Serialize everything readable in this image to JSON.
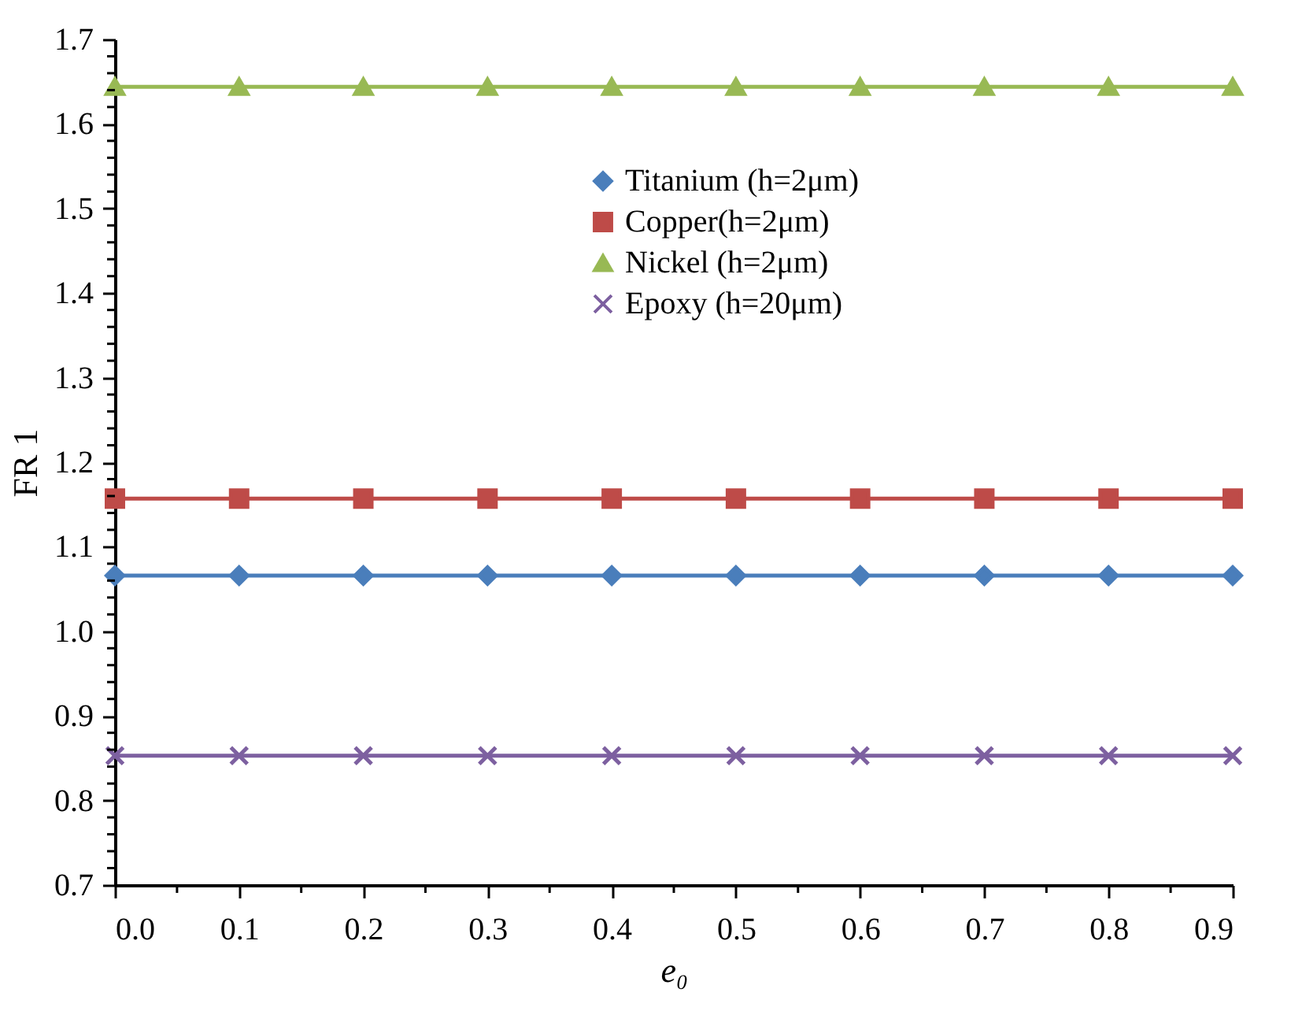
{
  "chart_data": {
    "type": "line",
    "xlabel": "e₀",
    "ylabel": "FR 1",
    "x": [
      0.0,
      0.1,
      0.2,
      0.3,
      0.4,
      0.5,
      0.6,
      0.7,
      0.8,
      0.9
    ],
    "series": [
      {
        "name": "Titanium (h=2μm)",
        "color": "#4a7ebb",
        "marker": "diamond",
        "values": [
          1.066,
          1.066,
          1.066,
          1.066,
          1.066,
          1.066,
          1.066,
          1.066,
          1.066,
          1.066
        ]
      },
      {
        "name": "Copper(h=2μm)",
        "color": "#be4b48",
        "marker": "square",
        "values": [
          1.157,
          1.157,
          1.157,
          1.157,
          1.157,
          1.157,
          1.157,
          1.157,
          1.157,
          1.157
        ]
      },
      {
        "name": "Nickel (h=2μm)",
        "color": "#98b954",
        "marker": "triangle",
        "values": [
          1.644,
          1.644,
          1.644,
          1.644,
          1.644,
          1.644,
          1.644,
          1.644,
          1.644,
          1.644
        ]
      },
      {
        "name": "Epoxy (h=20μm)",
        "color": "#7d60a0",
        "marker": "cross",
        "values": [
          0.853,
          0.853,
          0.853,
          0.853,
          0.853,
          0.853,
          0.853,
          0.853,
          0.853,
          0.853
        ]
      }
    ],
    "xlim": [
      0,
      0.9
    ],
    "xticks": [
      {
        "value": 0,
        "label": "0.0"
      },
      {
        "value": 0.05,
        "label": null
      },
      0.1,
      {
        "value": 0.15,
        "label": null
      },
      0.2,
      {
        "value": 0.25,
        "label": null
      },
      0.3,
      {
        "value": 0.35,
        "label": null
      },
      0.4,
      {
        "value": 0.45,
        "label": null
      },
      0.5,
      {
        "value": 0.55,
        "label": null
      },
      0.6,
      {
        "value": 0.65,
        "label": null
      },
      0.7,
      {
        "value": 0.75,
        "label": null
      },
      0.8,
      {
        "value": 0.85,
        "label": null
      },
      0.9
    ],
    "ylim": [
      0.7,
      1.7
    ],
    "yticks": [
      0.7,
      {
        "value": 0.72,
        "label": null
      },
      {
        "value": 0.74,
        "label": null
      },
      {
        "value": 0.76,
        "label": null
      },
      {
        "value": 0.78,
        "label": null
      },
      0.8,
      {
        "value": 0.82,
        "label": null
      },
      {
        "value": 0.84,
        "label": null
      },
      {
        "value": 0.86,
        "label": null
      },
      {
        "value": 0.88,
        "label": null
      },
      0.9,
      {
        "value": 0.92,
        "label": null
      },
      {
        "value": 0.94,
        "label": null
      },
      {
        "value": 0.96,
        "label": null
      },
      {
        "value": 0.98,
        "label": null
      },
      {
        "value": 1.0,
        "label": "1.0"
      },
      {
        "value": 1.02,
        "label": null
      },
      {
        "value": 1.04,
        "label": null
      },
      {
        "value": 1.06,
        "label": null
      },
      {
        "value": 1.08,
        "label": null
      },
      1.1,
      {
        "value": 1.12,
        "label": null
      },
      {
        "value": 1.14,
        "label": null
      },
      {
        "value": 1.16,
        "label": null
      },
      {
        "value": 1.18,
        "label": null
      },
      1.2,
      {
        "value": 1.22,
        "label": null
      },
      {
        "value": 1.24,
        "label": null
      },
      {
        "value": 1.26,
        "label": null
      },
      {
        "value": 1.28,
        "label": null
      },
      1.3,
      {
        "value": 1.32,
        "label": null
      },
      {
        "value": 1.34,
        "label": null
      },
      {
        "value": 1.36,
        "label": null
      },
      {
        "value": 1.38,
        "label": null
      },
      1.4,
      {
        "value": 1.42,
        "label": null
      },
      {
        "value": 1.44,
        "label": null
      },
      {
        "value": 1.46,
        "label": null
      },
      {
        "value": 1.48,
        "label": null
      },
      1.5,
      {
        "value": 1.52,
        "label": null
      },
      {
        "value": 1.54,
        "label": null
      },
      {
        "value": 1.56,
        "label": null
      },
      {
        "value": 1.58,
        "label": null
      },
      1.6,
      {
        "value": 1.62,
        "label": null
      },
      {
        "value": 1.64,
        "label": null
      },
      {
        "value": 1.66,
        "label": null
      },
      {
        "value": 1.68,
        "label": null
      },
      1.7
    ],
    "grid": false,
    "legend": "top",
    "line_style": "solid"
  }
}
